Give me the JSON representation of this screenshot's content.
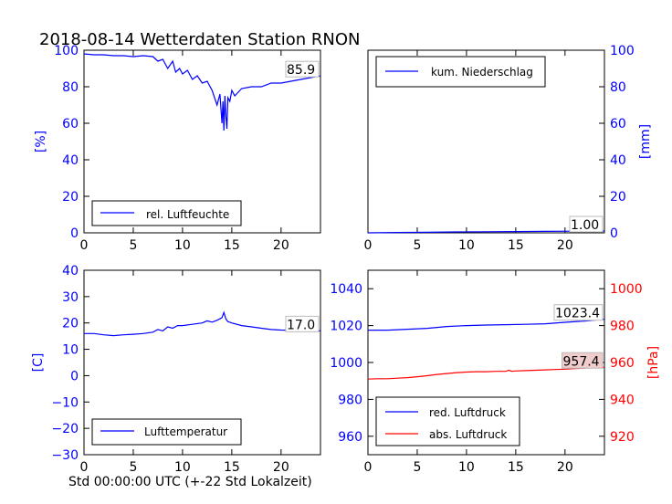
{
  "page_title": "2018-08-14 Wetterdaten Station RNON",
  "bottom_xlabel": "Std 00:00:00 UTC (+-22 Std Lokalzeit)",
  "colors": {
    "primary": "#0000ff",
    "secondary": "#ff0000",
    "box_fill": "#f0cccc"
  },
  "chart_data": [
    {
      "id": "humidity",
      "type": "line",
      "xlim": [
        0,
        24
      ],
      "ylim": [
        0,
        100
      ],
      "x_ticks": [
        0,
        5,
        10,
        15,
        20
      ],
      "y_ticks": [
        0,
        20,
        40,
        60,
        80,
        100
      ],
      "y_tick_labels": [
        "0",
        "20",
        "40",
        "60",
        "80",
        "100"
      ],
      "ylabel": "[%]",
      "ylabel_side": "left",
      "legend_placement": "bottom-left",
      "series": [
        {
          "name": "rel. Luftfeuchte",
          "color": "#0000ff",
          "last_value_label": "85.9",
          "x": [
            0,
            1,
            2,
            3,
            4,
            5,
            6,
            7,
            7.5,
            8,
            8.5,
            9,
            9.3,
            9.7,
            10,
            10.5,
            11,
            11.5,
            12,
            12.5,
            13,
            13.5,
            13.8,
            14,
            14.1,
            14.2,
            14.3,
            14.4,
            14.5,
            14.6,
            14.8,
            15,
            15.3,
            16,
            17,
            18,
            19,
            20,
            21,
            22,
            23,
            24
          ],
          "y": [
            98,
            97.5,
            97.5,
            97,
            97,
            96.5,
            97,
            96.5,
            94,
            95,
            90,
            94,
            88,
            90,
            87,
            89,
            84,
            86,
            82,
            83,
            78,
            70,
            76,
            60,
            72,
            56,
            75,
            64,
            57,
            74,
            72,
            78,
            75,
            79,
            80,
            80,
            82,
            82,
            83,
            84,
            85,
            85.9
          ]
        }
      ]
    },
    {
      "id": "precipitation",
      "type": "line",
      "xlim": [
        0,
        24
      ],
      "ylim": [
        0,
        100
      ],
      "x_ticks": [
        0,
        5,
        10,
        15,
        20
      ],
      "y_ticks": [
        0,
        20,
        40,
        60,
        80,
        100
      ],
      "y_tick_labels": [
        "0",
        "20",
        "40",
        "60",
        "80",
        "100"
      ],
      "ylabel": "[mm]",
      "ylabel_side": "right",
      "legend_placement": "top-left",
      "series": [
        {
          "name": "kum. Niederschlag",
          "color": "#0000ff",
          "last_value_label": "1.00",
          "x": [
            0,
            3,
            6,
            9,
            12,
            15,
            18,
            21,
            24
          ],
          "y": [
            0,
            0.2,
            0.3,
            0.5,
            0.6,
            0.7,
            0.8,
            0.9,
            1.0
          ]
        }
      ]
    },
    {
      "id": "temperature",
      "type": "line",
      "xlim": [
        0,
        24
      ],
      "ylim": [
        -30,
        40
      ],
      "x_ticks": [
        0,
        5,
        10,
        15,
        20
      ],
      "y_ticks": [
        -30,
        -20,
        -10,
        0,
        10,
        20,
        30,
        40
      ],
      "y_tick_labels": [
        "−30",
        "−20",
        "−10",
        "0",
        "10",
        "20",
        "30",
        "40"
      ],
      "ylabel": "[C]",
      "ylabel_side": "left",
      "legend_placement": "bottom-left",
      "series": [
        {
          "name": "Lufttemperatur",
          "color": "#0000ff",
          "last_value_label": "17.0",
          "x": [
            0,
            1,
            2,
            3,
            4,
            5,
            6,
            7,
            7.5,
            8,
            8.5,
            9,
            9.5,
            10,
            11,
            12,
            12.5,
            13,
            13.5,
            14,
            14.2,
            14.4,
            14.6,
            15,
            16,
            17,
            18,
            19,
            20,
            21,
            22,
            23,
            24
          ],
          "y": [
            16,
            16,
            15.5,
            15.2,
            15.5,
            15.7,
            16,
            16.5,
            17.5,
            17,
            18.5,
            18,
            19,
            19,
            19.5,
            20,
            20.8,
            20.3,
            21,
            22,
            24,
            21.5,
            20.5,
            20,
            19,
            18.5,
            18,
            17.5,
            17.3,
            17.2,
            17.1,
            17,
            17
          ]
        }
      ]
    },
    {
      "id": "pressure",
      "type": "line",
      "xlim": [
        0,
        24
      ],
      "ylim": [
        950,
        1050
      ],
      "ylim_right": [
        910,
        1010
      ],
      "x_ticks": [
        0,
        5,
        10,
        15,
        20
      ],
      "y_ticks": [
        960,
        980,
        1000,
        1020,
        1040
      ],
      "y_tick_labels": [
        "960",
        "980",
        "1000",
        "1020",
        "1040"
      ],
      "y2_ticks": [
        920,
        940,
        960,
        980,
        1000
      ],
      "y2_tick_labels": [
        "920",
        "940",
        "960",
        "980",
        "1000"
      ],
      "ylabel2": "[hPa]",
      "legend_placement": "bottom-left",
      "series": [
        {
          "name": "red. Luftdruck",
          "color": "#0000ff",
          "axis": "left",
          "last_value_label": "1023.4",
          "x": [
            0,
            2,
            4,
            6,
            8,
            10,
            12,
            14,
            16,
            18,
            20,
            22,
            24
          ],
          "y": [
            1017.5,
            1017.5,
            1018,
            1018.5,
            1019.5,
            1020,
            1020.3,
            1020.5,
            1020.7,
            1021,
            1021.8,
            1022.5,
            1023.4
          ]
        },
        {
          "name": "abs. Luftdruck",
          "color": "#ff0000",
          "axis": "right",
          "last_value_label": "957.4",
          "x": [
            0,
            1,
            2,
            3,
            4,
            5,
            6,
            7,
            8,
            9,
            10,
            11,
            12,
            13,
            14,
            14.3,
            14.6,
            15,
            16,
            17,
            18,
            19,
            20,
            21,
            22,
            23,
            24
          ],
          "y": [
            951,
            951.2,
            951.2,
            951.5,
            951.8,
            952.3,
            952.8,
            953.5,
            954,
            954.5,
            954.8,
            955,
            955,
            955.2,
            955.2,
            955.8,
            955.2,
            955.4,
            955.6,
            955.8,
            956,
            956.2,
            956.4,
            956.7,
            957,
            957.2,
            957.4
          ]
        }
      ]
    }
  ]
}
